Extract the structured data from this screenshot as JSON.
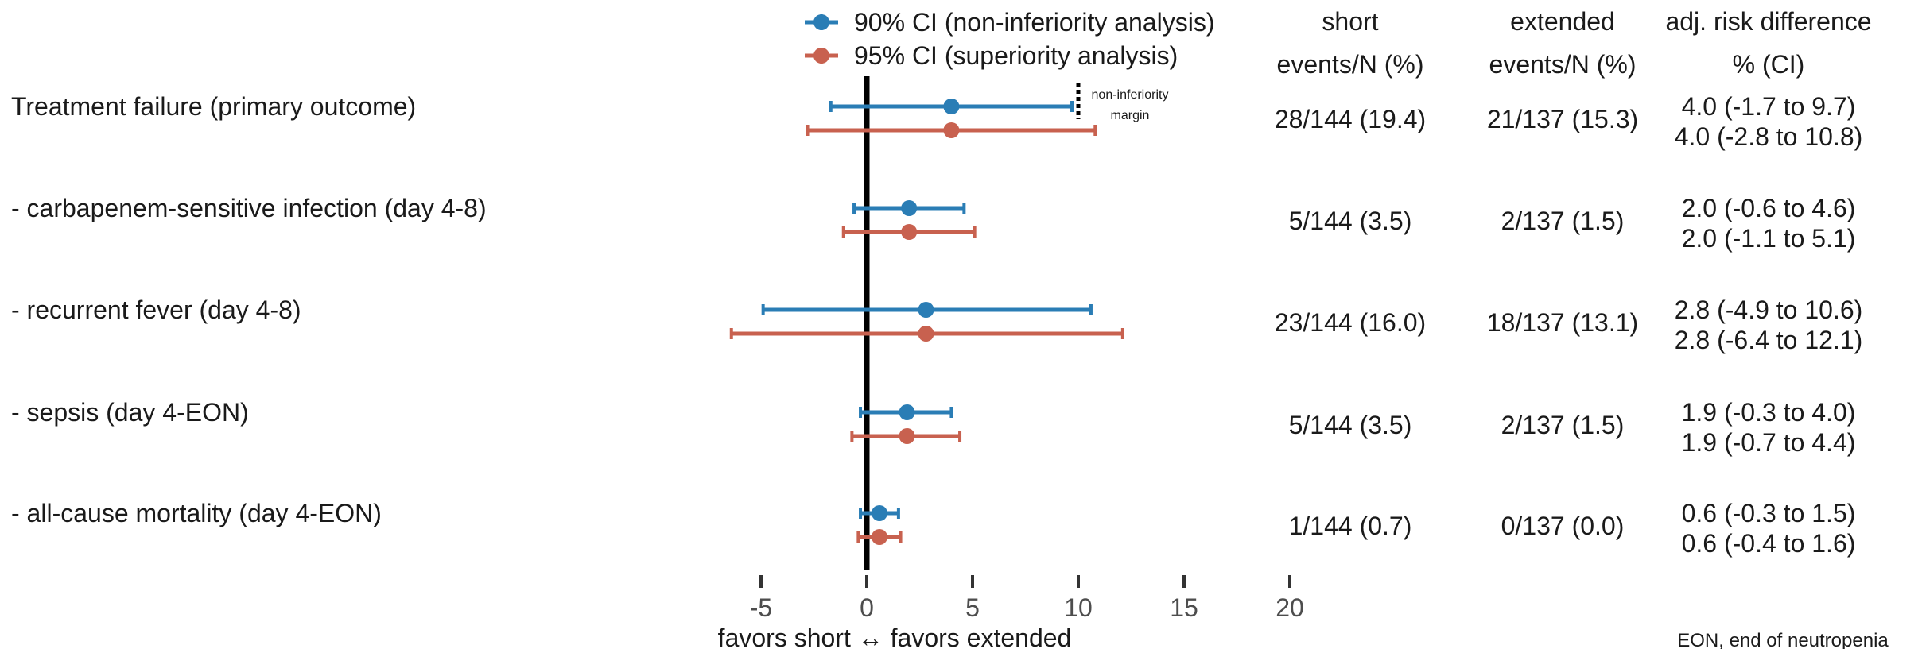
{
  "chart_data": {
    "type": "forest",
    "xlim": [
      -5,
      20
    ],
    "ticks": [
      -5,
      0,
      5,
      10,
      15,
      20
    ],
    "reference_line": 0,
    "non_inferiority_margin": 10,
    "margin_label_lines": [
      "non-inferiority",
      "margin"
    ],
    "xlabel": "favors  short ↔ favors  extended",
    "footnote": "EON, end of neutropenia",
    "legend": [
      {
        "key": "ci90",
        "label": "90% CI (non-inferiority analysis)",
        "color": "#2a7db5"
      },
      {
        "key": "ci95",
        "label": "95% CI (superiority analysis)",
        "color": "#c8614f"
      }
    ],
    "column_headers": [
      {
        "key": "short",
        "lines": [
          "short",
          "events/N (%)"
        ]
      },
      {
        "key": "extended",
        "lines": [
          "extended",
          "events/N (%)"
        ]
      },
      {
        "key": "diff",
        "lines": [
          "adj. risk difference",
          "% (CI)"
        ]
      }
    ],
    "outcomes": [
      {
        "label": "Treatment failure (primary outcome)",
        "ci90": {
          "est": 4.0,
          "low": -1.7,
          "high": 9.7
        },
        "ci95": {
          "est": 4.0,
          "low": -2.8,
          "high": 10.8
        },
        "short": "28/144 (19.4)",
        "extended": "21/137 (15.3)",
        "diff90": "4.0 (-1.7 to 9.7)",
        "diff95": "4.0 (-2.8 to 10.8)"
      },
      {
        "label": " - carbapenem-sensitive infection (day 4-8)",
        "ci90": {
          "est": 2.0,
          "low": -0.6,
          "high": 4.6
        },
        "ci95": {
          "est": 2.0,
          "low": -1.1,
          "high": 5.1
        },
        "short": "5/144 (3.5)",
        "extended": "2/137 (1.5)",
        "diff90": "2.0 (-0.6 to 4.6)",
        "diff95": "2.0 (-1.1 to 5.1)"
      },
      {
        "label": " - recurrent fever (day 4-8)",
        "ci90": {
          "est": 2.8,
          "low": -4.9,
          "high": 10.6
        },
        "ci95": {
          "est": 2.8,
          "low": -6.4,
          "high": 12.1
        },
        "short": "23/144 (16.0)",
        "extended": "18/137 (13.1)",
        "diff90": "2.8 (-4.9 to 10.6)",
        "diff95": "2.8 (-6.4 to 12.1)"
      },
      {
        "label": " - sepsis (day 4-EON)",
        "ci90": {
          "est": 1.9,
          "low": -0.3,
          "high": 4.0
        },
        "ci95": {
          "est": 1.9,
          "low": -0.7,
          "high": 4.4
        },
        "short": "5/144 (3.5)",
        "extended": "2/137 (1.5)",
        "diff90": "1.9 (-0.3 to 4.0)",
        "diff95": "1.9 (-0.7 to 4.4)"
      },
      {
        "label": " - all-cause mortality (day 4-EON)",
        "ci90": {
          "est": 0.6,
          "low": -0.3,
          "high": 1.5
        },
        "ci95": {
          "est": 0.6,
          "low": -0.4,
          "high": 1.6
        },
        "short": "1/144 (0.7)",
        "extended": "0/137 (0.0)",
        "diff90": "0.6 (-0.3 to 1.5)",
        "diff95": "0.6 (-0.4 to 1.6)"
      }
    ]
  }
}
